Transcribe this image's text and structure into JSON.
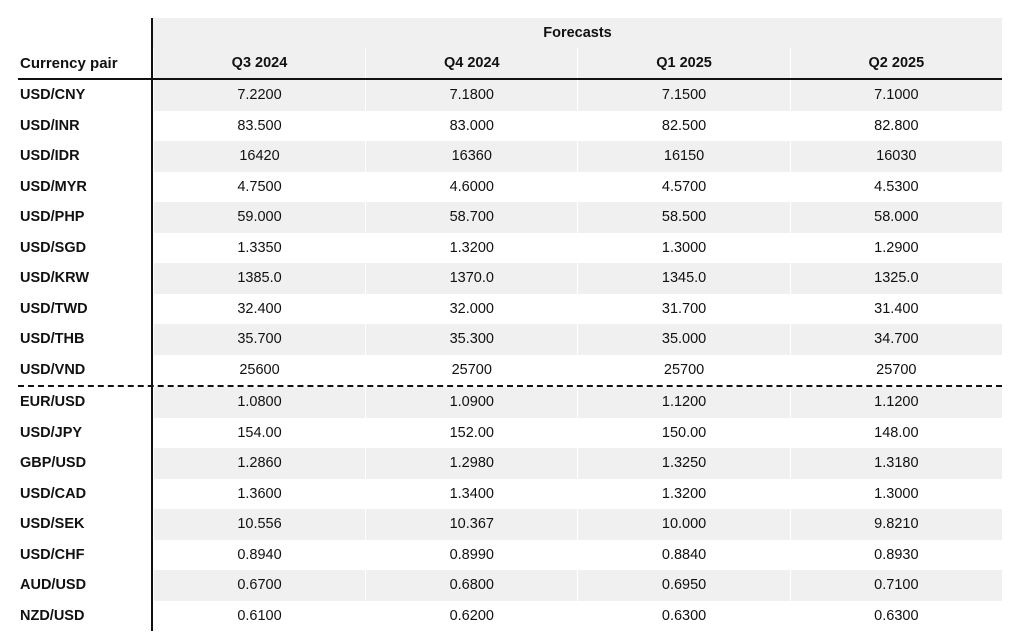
{
  "table": {
    "super_header": "Forecasts",
    "corner_label": "Currency pair",
    "columns": [
      "Q3 2024",
      "Q4 2024",
      "Q1 2025",
      "Q2 2025"
    ],
    "rows": [
      {
        "pair": "USD/CNY",
        "values": [
          "7.2200",
          "7.1800",
          "7.1500",
          "7.1000"
        ]
      },
      {
        "pair": "USD/INR",
        "values": [
          "83.500",
          "83.000",
          "82.500",
          "82.800"
        ]
      },
      {
        "pair": "USD/IDR",
        "values": [
          "16420",
          "16360",
          "16150",
          "16030"
        ]
      },
      {
        "pair": "USD/MYR",
        "values": [
          "4.7500",
          "4.6000",
          "4.5700",
          "4.5300"
        ]
      },
      {
        "pair": "USD/PHP",
        "values": [
          "59.000",
          "58.700",
          "58.500",
          "58.000"
        ]
      },
      {
        "pair": "USD/SGD",
        "values": [
          "1.3350",
          "1.3200",
          "1.3000",
          "1.2900"
        ]
      },
      {
        "pair": "USD/KRW",
        "values": [
          "1385.0",
          "1370.0",
          "1345.0",
          "1325.0"
        ]
      },
      {
        "pair": "USD/TWD",
        "values": [
          "32.400",
          "32.000",
          "31.700",
          "31.400"
        ]
      },
      {
        "pair": "USD/THB",
        "values": [
          "35.700",
          "35.300",
          "35.000",
          "34.700"
        ]
      },
      {
        "pair": "USD/VND",
        "values": [
          "25600",
          "25700",
          "25700",
          "25700"
        ]
      },
      {
        "pair": "EUR/USD",
        "values": [
          "1.0800",
          "1.0900",
          "1.1200",
          "1.1200"
        ]
      },
      {
        "pair": "USD/JPY",
        "values": [
          "154.00",
          "152.00",
          "150.00",
          "148.00"
        ]
      },
      {
        "pair": "GBP/USD",
        "values": [
          "1.2860",
          "1.2980",
          "1.3250",
          "1.3180"
        ]
      },
      {
        "pair": "USD/CAD",
        "values": [
          "1.3600",
          "1.3400",
          "1.3200",
          "1.3000"
        ]
      },
      {
        "pair": "USD/SEK",
        "values": [
          "10.556",
          "10.367",
          "10.000",
          "9.8210"
        ]
      },
      {
        "pair": "USD/CHF",
        "values": [
          "0.8940",
          "0.8990",
          "0.8840",
          "0.8930"
        ]
      },
      {
        "pair": "AUD/USD",
        "values": [
          "0.6700",
          "0.6800",
          "0.6950",
          "0.7100"
        ]
      },
      {
        "pair": "NZD/USD",
        "values": [
          "0.6100",
          "0.6200",
          "0.6300",
          "0.6300"
        ]
      }
    ]
  }
}
